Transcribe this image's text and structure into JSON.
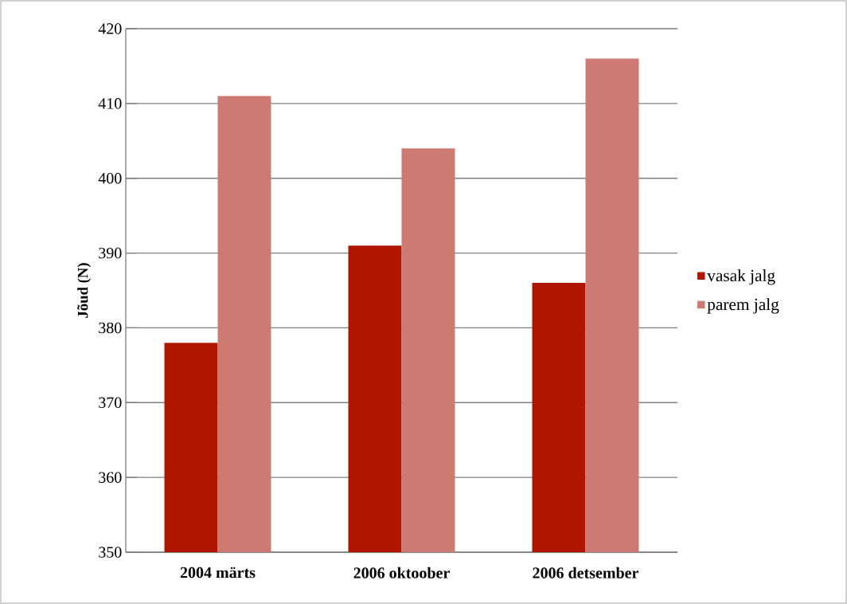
{
  "chart_data": {
    "type": "bar",
    "ylabel": "Jõud (N)",
    "categories": [
      "2004 märts",
      "2006 oktoober",
      "2006 detsember"
    ],
    "series": [
      {
        "name": "vasak jalg",
        "color": "#b01500",
        "values": [
          378,
          391,
          386
        ]
      },
      {
        "name": "parem jalg",
        "color": "#cc7a72",
        "values": [
          411,
          404,
          416
        ]
      }
    ],
    "ylim": [
      350,
      420
    ],
    "yticks": [
      350,
      360,
      370,
      380,
      390,
      400,
      410,
      420
    ],
    "grid": "y",
    "legend": "right"
  }
}
